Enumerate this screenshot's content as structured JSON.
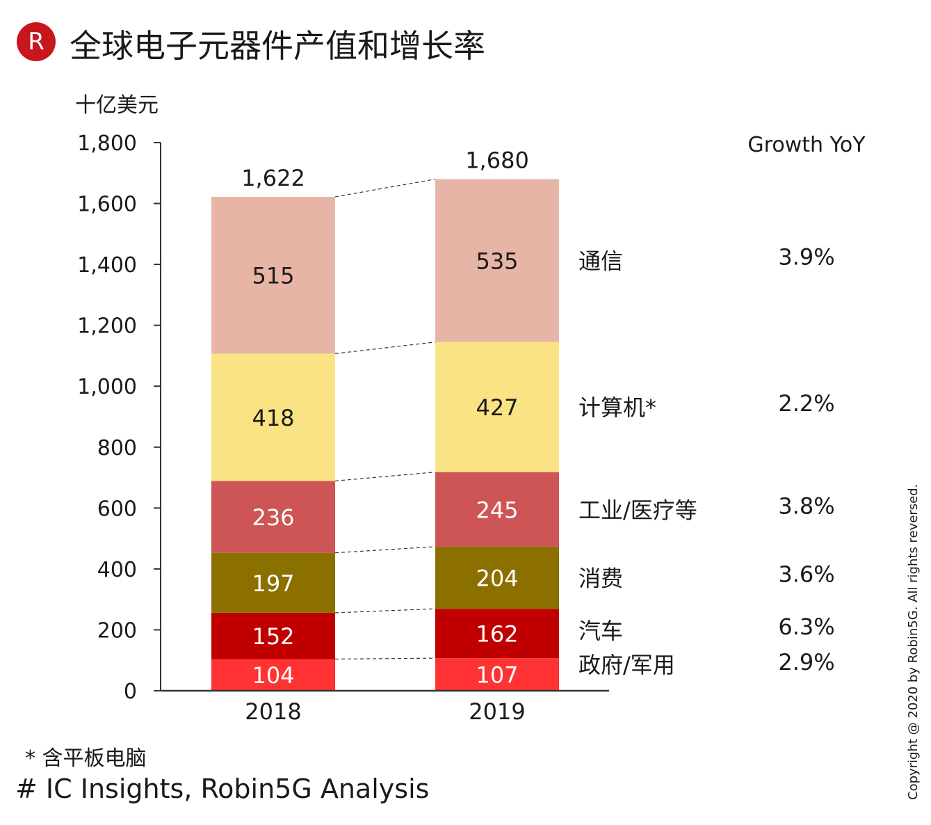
{
  "header": {
    "logo_letter": "R",
    "title": "全球电子元器件产值和增长率"
  },
  "unit_label": "十亿美元",
  "footnote": "* 含平板电脑",
  "source": "# IC Insights, Robin5G Analysis",
  "copyright": "Copyright @ 2020 by Robin5G. All rights reversed.",
  "chart_data": {
    "type": "bar",
    "stacked": true,
    "categories": [
      "2018",
      "2019"
    ],
    "totals": [
      "1,622",
      "1,680"
    ],
    "totals_values": [
      1622,
      1680
    ],
    "ylim": [
      0,
      1800
    ],
    "yticks": [
      0,
      200,
      400,
      600,
      800,
      1000,
      1200,
      1400,
      1600,
      1800
    ],
    "ytick_labels": [
      "0",
      "200",
      "400",
      "600",
      "800",
      "1,000",
      "1,200",
      "1,400",
      "1,600",
      "1,800"
    ],
    "growth_header": "Growth YoY",
    "series": [
      {
        "name": "政府/军用",
        "values": [
          104,
          107
        ],
        "growth": "2.9%",
        "color": "#ff3333",
        "label_color": "#ffffff"
      },
      {
        "name": "汽车",
        "values": [
          152,
          162
        ],
        "growth": "6.3%",
        "color": "#c00000",
        "label_color": "#ffffff"
      },
      {
        "name": "消费",
        "values": [
          197,
          204
        ],
        "growth": "3.6%",
        "color": "#8b7000",
        "label_color": "#ffffff"
      },
      {
        "name": "工业/医疗等",
        "values": [
          236,
          245
        ],
        "growth": "3.8%",
        "color": "#cd5555",
        "label_color": "#ffffff"
      },
      {
        "name": "计算机*",
        "values": [
          418,
          427
        ],
        "growth": "2.2%",
        "color": "#fae384",
        "label_color": "#1a1a1a"
      },
      {
        "name": "通信",
        "values": [
          515,
          535
        ],
        "growth": "3.9%",
        "color": "#e6b5a6",
        "label_color": "#1a1a1a"
      }
    ]
  }
}
